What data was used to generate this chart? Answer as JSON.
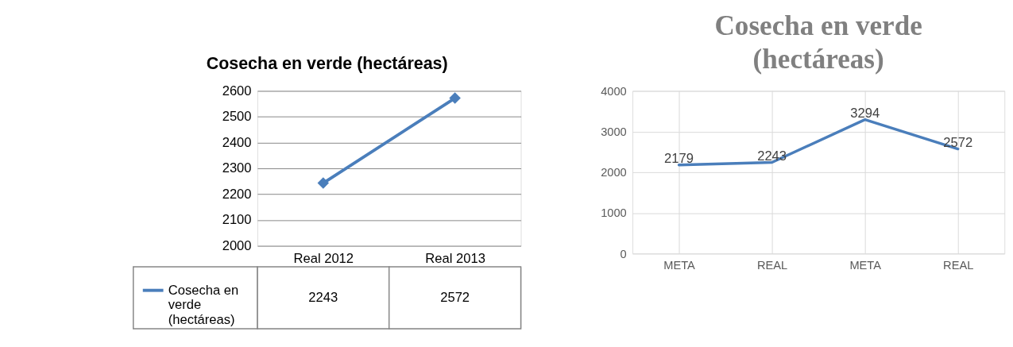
{
  "chart_data": [
    {
      "type": "line",
      "title": "Cosecha en verde (hectáreas)",
      "categories": [
        "Real 2012",
        "Real 2013"
      ],
      "series": [
        {
          "name": "Cosecha en verde (hectáreas)",
          "color": "#4a7ebb",
          "values": [
            2243,
            2572
          ]
        }
      ],
      "ylim": [
        2000,
        2600
      ],
      "yticks": [
        2000,
        2100,
        2200,
        2300,
        2400,
        2500,
        2600
      ],
      "grid": "y",
      "marker": "diamond",
      "data_labels": true,
      "legend": "bottom"
    },
    {
      "type": "line",
      "title": "Cosecha en verde (hectáreas)",
      "categories": [
        "META",
        "REAL",
        "META",
        "REAL"
      ],
      "series": [
        {
          "color": "#4472c4",
          "values": [
            2179,
            2243,
            3294,
            2572
          ]
        }
      ],
      "ylim": [
        0,
        4000
      ],
      "yticks": [
        0,
        1000,
        2000,
        3000,
        4000
      ],
      "grid": true,
      "marker": "none",
      "data_labels": true
    }
  ]
}
